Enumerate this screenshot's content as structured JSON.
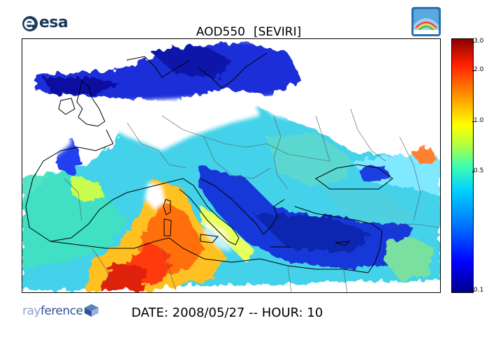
{
  "header": {
    "esa_logo_text": "esa",
    "title": "AOD550",
    "instrument": "[SEVIRI]"
  },
  "colorbar": {
    "ticks": [
      "3.0",
      "2.0",
      "1.0",
      "0.5",
      "0.1"
    ],
    "colors": [
      "#00008b",
      "#0000ff",
      "#0080ff",
      "#00d0ff",
      "#40ffb0",
      "#b0ff40",
      "#ffff00",
      "#ff9000",
      "#ff2000",
      "#8b0000"
    ]
  },
  "footer": {
    "brand_light": "ray",
    "brand_dark": "ference",
    "date_line": "DATE: 2008/05/27 -- HOUR: 10"
  }
}
